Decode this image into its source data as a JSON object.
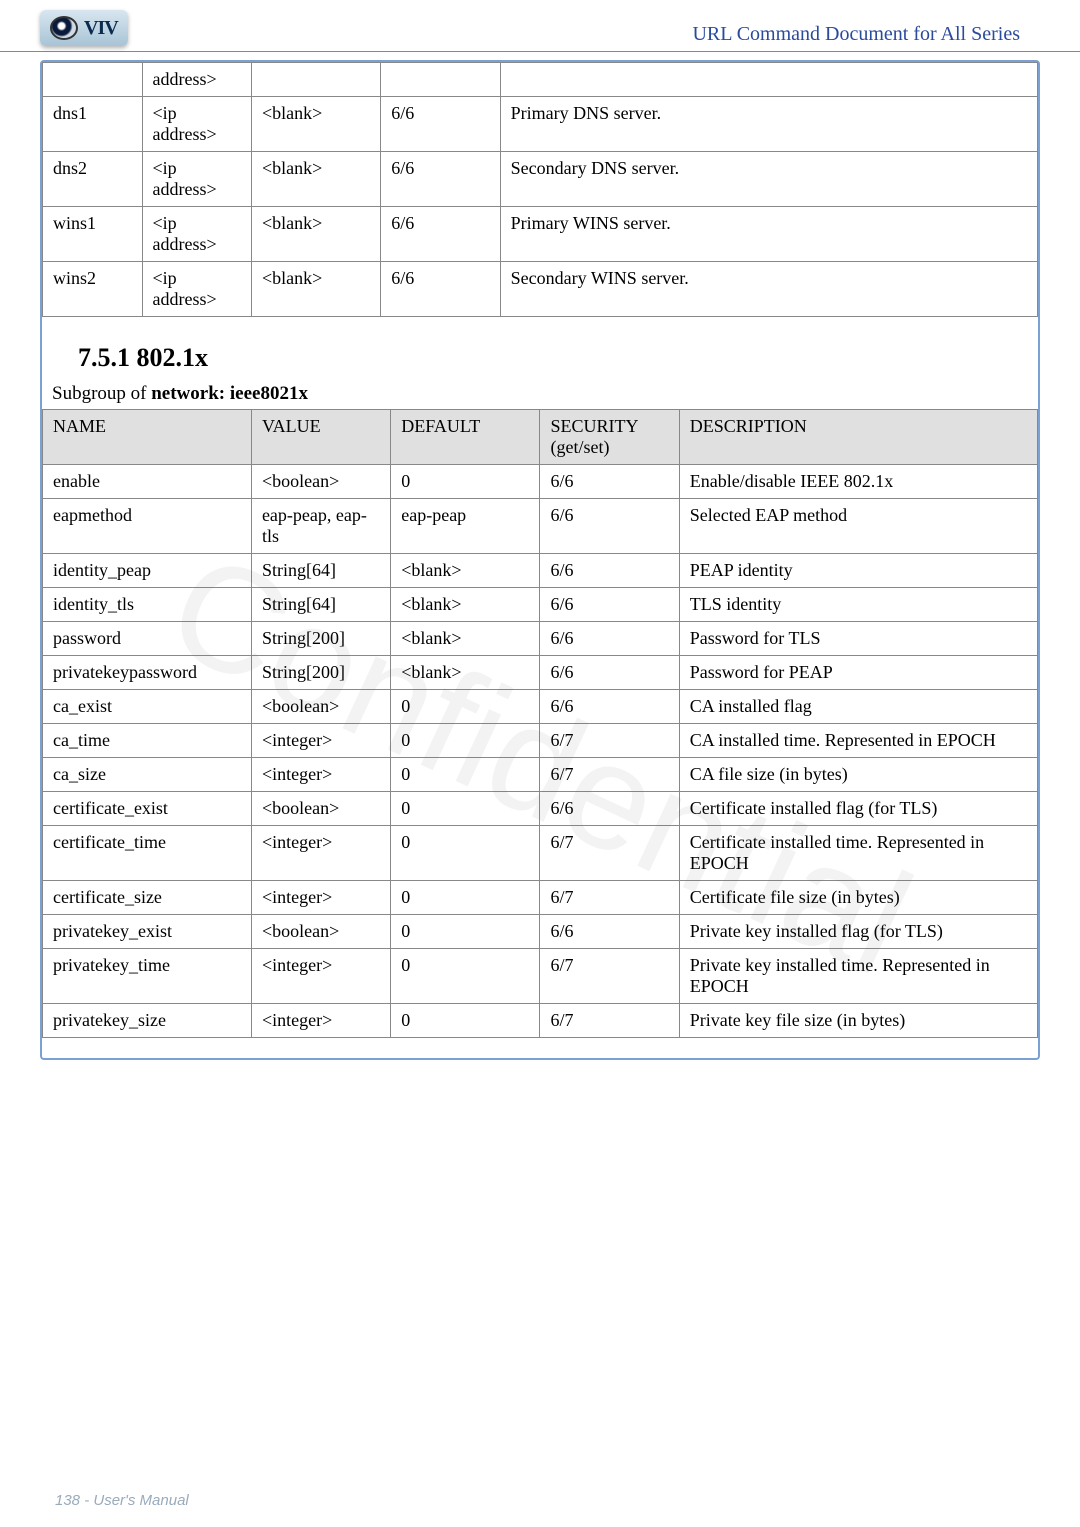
{
  "header": {
    "doc_title": "URL Command Document for All Series"
  },
  "table1": {
    "rows": [
      {
        "name": "",
        "value": "address>",
        "default": "",
        "security": "",
        "desc": ""
      },
      {
        "name": "dns1",
        "value": "<ip address>",
        "default": "<blank>",
        "security": "6/6",
        "desc": "Primary DNS server."
      },
      {
        "name": "dns2",
        "value": "<ip address>",
        "default": "<blank>",
        "security": "6/6",
        "desc": "Secondary DNS server."
      },
      {
        "name": "wins1",
        "value": "<ip address>",
        "default": "<blank>",
        "security": "6/6",
        "desc": "Primary WINS server."
      },
      {
        "name": "wins2",
        "value": "<ip address>",
        "default": "<blank>",
        "security": "6/6",
        "desc": "Secondary WINS server."
      }
    ]
  },
  "section": {
    "heading": "7.5.1 802.1x",
    "subcaption_prefix": "Subgroup of ",
    "subcaption_bold": "network: ieee8021x"
  },
  "table2": {
    "columns": [
      "NAME",
      "VALUE",
      "DEFAULT",
      "SECURITY (get/set)",
      "DESCRIPTION"
    ],
    "header": {
      "name": "NAME",
      "value": "VALUE",
      "default": "DEFAULT",
      "security": "SECURITY",
      "security2": "(get/set)",
      "desc": "DESCRIPTION"
    },
    "rows": [
      {
        "name": "enable",
        "value": "<boolean>",
        "default": "0",
        "security": "6/6",
        "desc": "Enable/disable IEEE 802.1x"
      },
      {
        "name": "eapmethod",
        "value": "eap-peap, eap-tls",
        "default": "eap-peap",
        "security": "6/6",
        "desc": "Selected EAP method"
      },
      {
        "name": "identity_peap",
        "value": "String[64]",
        "default": "<blank>",
        "security": "6/6",
        "desc": "PEAP identity"
      },
      {
        "name": "identity_tls",
        "value": "String[64]",
        "default": "<blank>",
        "security": "6/6",
        "desc": "TLS identity"
      },
      {
        "name": "password",
        "value": "String[200]",
        "default": "<blank>",
        "security": "6/6",
        "desc": "Password for TLS"
      },
      {
        "name": "privatekeypassword",
        "value": "String[200]",
        "default": "<blank>",
        "security": "6/6",
        "desc": "Password for PEAP"
      },
      {
        "name": "ca_exist",
        "value": "<boolean>",
        "default": "0",
        "security": "6/6",
        "desc": "CA installed flag"
      },
      {
        "name": "ca_time",
        "value": "<integer>",
        "default": "0",
        "security": "6/7",
        "desc": "CA installed time. Represented in EPOCH"
      },
      {
        "name": "ca_size",
        "value": "<integer>",
        "default": "0",
        "security": "6/7",
        "desc": "CA file size (in bytes)"
      },
      {
        "name": "certificate_exist",
        "value": "<boolean>",
        "default": "0",
        "security": "6/6",
        "desc": "Certificate installed flag (for TLS)"
      },
      {
        "name": "certificate_time",
        "value": "<integer>",
        "default": "0",
        "security": "6/7",
        "desc": "Certificate installed time. Represented in EPOCH"
      },
      {
        "name": "certificate_size",
        "value": "<integer>",
        "default": "0",
        "security": "6/7",
        "desc": "Certificate file size (in bytes)"
      },
      {
        "name": "privatekey_exist",
        "value": "<boolean>",
        "default": "0",
        "security": "6/6",
        "desc": "Private key installed flag (for TLS)"
      },
      {
        "name": "privatekey_time",
        "value": "<integer>",
        "default": "0",
        "security": "6/7",
        "desc": "Private key installed time. Represented in EPOCH"
      },
      {
        "name": "privatekey_size",
        "value": "<integer>",
        "default": "0",
        "security": "6/7",
        "desc": "Private key file size (in bytes)"
      }
    ]
  },
  "footer": {
    "page": "138 - User's Manual"
  },
  "watermark": "Confidential"
}
